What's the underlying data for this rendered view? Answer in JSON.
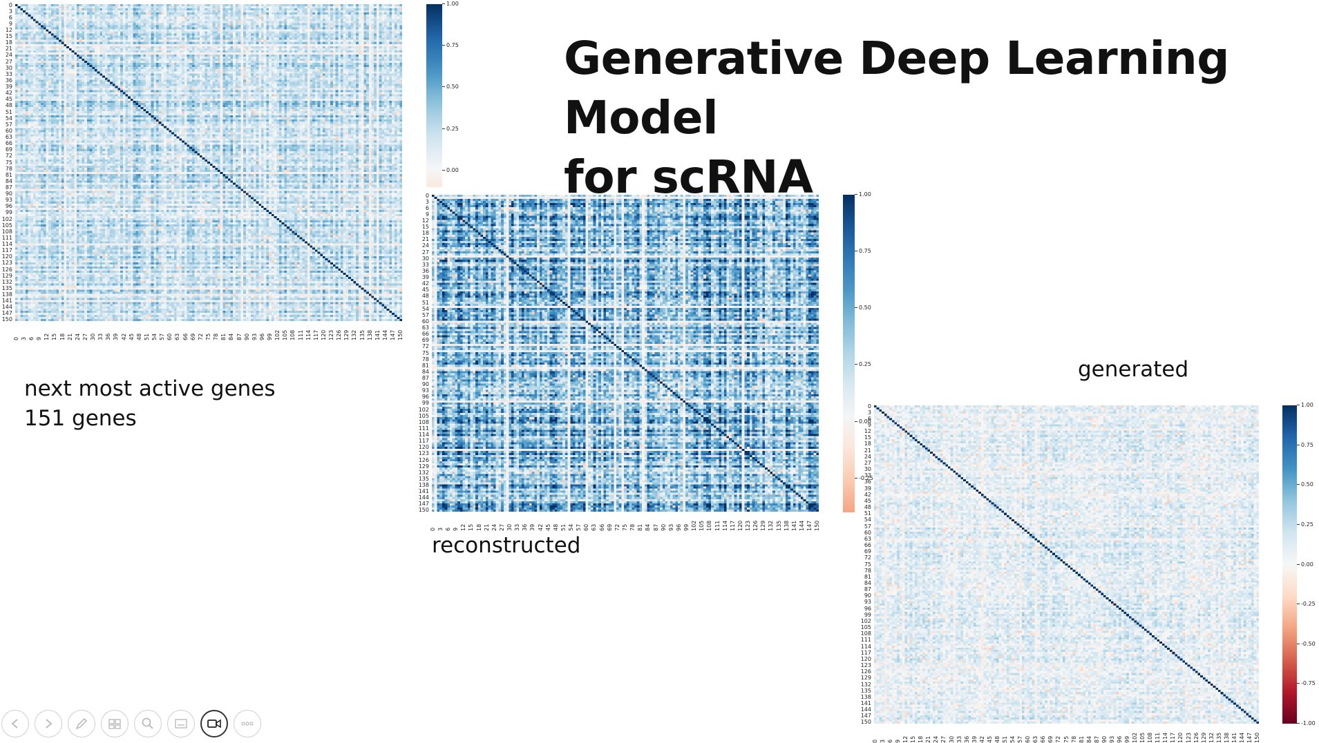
{
  "slide": {
    "title_line1": "Generative Deep Learning Model",
    "title_line2": "for scRNA",
    "caption_original_line1": "next most active genes",
    "caption_original_line2": "151 genes",
    "caption_reconstructed": "reconstructed",
    "caption_generated": "generated"
  },
  "chart_data": [
    {
      "type": "heatmap",
      "name": "next most active genes",
      "n": 151,
      "row_tick_labels": [
        "0",
        "3",
        "6",
        "9",
        "12",
        "15",
        "18",
        "21",
        "24",
        "27",
        "30",
        "33",
        "36",
        "39",
        "42",
        "45",
        "48",
        "51",
        "54",
        "57",
        "60",
        "63",
        "66",
        "69",
        "72",
        "75",
        "78",
        "81",
        "84",
        "87",
        "90",
        "93",
        "96",
        "99",
        "102",
        "105",
        "108",
        "111",
        "114",
        "117",
        "120",
        "123",
        "126",
        "129",
        "132",
        "135",
        "138",
        "141",
        "144",
        "147",
        "150"
      ],
      "col_tick_labels": [
        "0",
        "3",
        "6",
        "9",
        "12",
        "15",
        "18",
        "21",
        "24",
        "27",
        "30",
        "33",
        "36",
        "39",
        "42",
        "45",
        "48",
        "51",
        "54",
        "57",
        "60",
        "63",
        "66",
        "69",
        "72",
        "75",
        "78",
        "81",
        "84",
        "87",
        "90",
        "93",
        "96",
        "99",
        "102",
        "105",
        "108",
        "111",
        "114",
        "117",
        "120",
        "123",
        "126",
        "129",
        "132",
        "135",
        "138",
        "141",
        "144",
        "147",
        "150"
      ],
      "colorbar_ticks": [
        "1.00",
        "0.75",
        "0.50",
        "0.25",
        "0.00"
      ],
      "vmin": -0.1,
      "vmax": 1.0,
      "mean_offdiag": 0.32
    },
    {
      "type": "heatmap",
      "name": "reconstructed",
      "n": 151,
      "row_tick_labels": [
        "0",
        "3",
        "6",
        "9",
        "12",
        "15",
        "18",
        "21",
        "24",
        "27",
        "30",
        "33",
        "36",
        "39",
        "42",
        "45",
        "48",
        "51",
        "54",
        "57",
        "60",
        "63",
        "66",
        "69",
        "72",
        "75",
        "78",
        "81",
        "84",
        "87",
        "90",
        "93",
        "96",
        "99",
        "102",
        "105",
        "108",
        "111",
        "114",
        "117",
        "120",
        "123",
        "126",
        "129",
        "132",
        "135",
        "138",
        "141",
        "144",
        "147",
        "150"
      ],
      "col_tick_labels": [
        "0",
        "3",
        "6",
        "9",
        "12",
        "15",
        "18",
        "21",
        "24",
        "27",
        "30",
        "33",
        "36",
        "39",
        "42",
        "45",
        "48",
        "51",
        "54",
        "57",
        "60",
        "63",
        "66",
        "69",
        "72",
        "75",
        "78",
        "81",
        "84",
        "87",
        "90",
        "93",
        "96",
        "99",
        "102",
        "105",
        "108",
        "111",
        "114",
        "117",
        "120",
        "123",
        "126",
        "129",
        "132",
        "135",
        "138",
        "141",
        "144",
        "147",
        "150"
      ],
      "colorbar_ticks": [
        "1.00",
        "0.75",
        "0.50",
        "0.25",
        "0.00",
        "-0.25"
      ],
      "vmin": -0.4,
      "vmax": 1.0,
      "mean_offdiag": 0.62
    },
    {
      "type": "heatmap",
      "name": "generated",
      "n": 151,
      "row_tick_labels": [
        "0",
        "3",
        "6",
        "9",
        "12",
        "15",
        "18",
        "21",
        "24",
        "27",
        "30",
        "33",
        "36",
        "39",
        "42",
        "45",
        "48",
        "51",
        "54",
        "57",
        "60",
        "63",
        "66",
        "69",
        "72",
        "75",
        "78",
        "81",
        "84",
        "87",
        "90",
        "93",
        "96",
        "99",
        "102",
        "105",
        "108",
        "111",
        "114",
        "117",
        "120",
        "123",
        "126",
        "129",
        "132",
        "135",
        "138",
        "141",
        "144",
        "147",
        "150"
      ],
      "col_tick_labels": [
        "0",
        "3",
        "6",
        "9",
        "12",
        "15",
        "18",
        "21",
        "24",
        "27",
        "30",
        "33",
        "36",
        "39",
        "42",
        "45",
        "48",
        "51",
        "54",
        "57",
        "60",
        "63",
        "66",
        "69",
        "72",
        "75",
        "78",
        "81",
        "84",
        "87",
        "90",
        "93",
        "96",
        "99",
        "102",
        "105",
        "108",
        "111",
        "114",
        "117",
        "120",
        "123",
        "126",
        "129",
        "132",
        "135",
        "138",
        "141",
        "144",
        "147",
        "150"
      ],
      "colorbar_ticks": [
        "1.00",
        "0.75",
        "0.50",
        "0.25",
        "0.00",
        "-0.25",
        "-0.50",
        "-0.75",
        "-1.00"
      ],
      "vmin": -1.0,
      "vmax": 1.0,
      "mean_offdiag": 0.15
    }
  ],
  "toolbar": {
    "buttons": [
      {
        "icon": "previous-icon"
      },
      {
        "icon": "next-icon"
      },
      {
        "icon": "pen-icon"
      },
      {
        "icon": "slides-icon"
      },
      {
        "icon": "zoom-icon"
      },
      {
        "icon": "subtitles-icon"
      },
      {
        "icon": "camera-icon",
        "active": true
      },
      {
        "icon": "more-icon"
      }
    ]
  },
  "colors": {
    "accent_dark_blue": "#08306b",
    "diverging_low": "#67001f"
  }
}
